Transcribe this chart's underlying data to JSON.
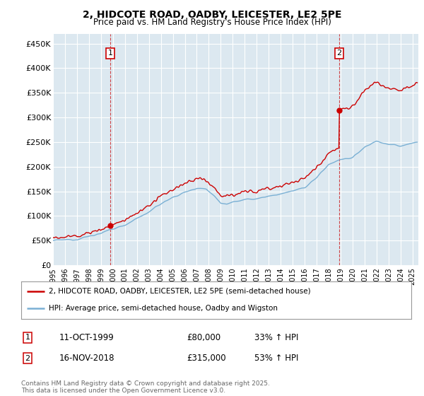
{
  "title": "2, HIDCOTE ROAD, OADBY, LEICESTER, LE2 5PE",
  "subtitle": "Price paid vs. HM Land Registry's House Price Index (HPI)",
  "ylabel_ticks": [
    "£0",
    "£50K",
    "£100K",
    "£150K",
    "£200K",
    "£250K",
    "£300K",
    "£350K",
    "£400K",
    "£450K"
  ],
  "ytick_vals": [
    0,
    50000,
    100000,
    150000,
    200000,
    250000,
    300000,
    350000,
    400000,
    450000
  ],
  "ylim": [
    0,
    470000
  ],
  "xlim_start": 1995.0,
  "xlim_end": 2025.5,
  "plot_bg_color": "#dce8f0",
  "fig_bg_color": "#ffffff",
  "grid_color": "#ffffff",
  "red_line_color": "#cc0000",
  "blue_line_color": "#7ab0d4",
  "purchase1_x": 1999.78,
  "purchase1_price": 80000,
  "purchase2_x": 2018.88,
  "purchase2_price": 315000,
  "legend_line1": "2, HIDCOTE ROAD, OADBY, LEICESTER, LE2 5PE (semi-detached house)",
  "legend_line2": "HPI: Average price, semi-detached house, Oadby and Wigston",
  "footnote": "Contains HM Land Registry data © Crown copyright and database right 2025.\nThis data is licensed under the Open Government Licence v3.0.",
  "table_row1": [
    "1",
    "11-OCT-1999",
    "£80,000",
    "33% ↑ HPI"
  ],
  "table_row2": [
    "2",
    "16-NOV-2018",
    "£315,000",
    "53% ↑ HPI"
  ]
}
